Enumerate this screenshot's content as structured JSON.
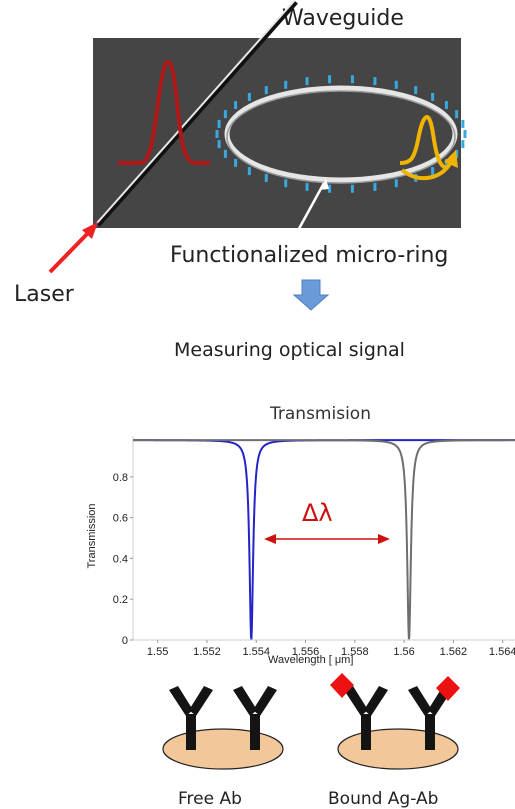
{
  "top": {
    "waveguide_label": "Waveguide",
    "ring_label": "Functionalized micro-ring",
    "laser_label": "Laser",
    "measure_label": "Measuring optical signal"
  },
  "chart_data": {
    "type": "line",
    "title": "Transmision",
    "xlabel": "Wavelength [ μm]",
    "ylabel": "Transmission",
    "xlim": [
      1.549,
      1.5645
    ],
    "ylim": [
      0,
      1
    ],
    "x_ticks": [
      "1.55",
      "1.552",
      "1.554",
      "1.556",
      "1.558",
      "1.56",
      "1.562",
      "1.564"
    ],
    "x_tick_values": [
      1.55,
      1.552,
      1.554,
      1.556,
      1.558,
      1.56,
      1.562,
      1.564
    ],
    "y_ticks": [
      "0",
      "0.2",
      "0.4",
      "0.6",
      "0.8"
    ],
    "y_tick_values": [
      0,
      0.2,
      0.4,
      0.6,
      0.8
    ],
    "series": [
      {
        "color": "#2424c8",
        "baseline": 0.98,
        "dip_center": 1.5538,
        "dip_min": 0.0,
        "dip_width": 9e-05
      },
      {
        "color": "#6e6e6e",
        "baseline": 0.98,
        "dip_center": 1.5602,
        "dip_min": 0.0,
        "dip_width": 9e-05
      }
    ],
    "annotation": {
      "text": "Δλ",
      "color": "#cc1111"
    },
    "grid": false
  },
  "bottom": {
    "free_label": "Free Ab",
    "bound_label": "Bound Ag-Ab"
  },
  "colors": {
    "panel": "#4a4a4a",
    "pulse_red": "#b01818",
    "pulse_yellow": "#f0b400",
    "ring_dots": "#3aa8e0",
    "laser_arrow": "#ee2222",
    "down_arrow": "#6a9ad8",
    "antibody": "#141414",
    "antigen": "#ee1111",
    "substrate": "#f2c79a"
  }
}
